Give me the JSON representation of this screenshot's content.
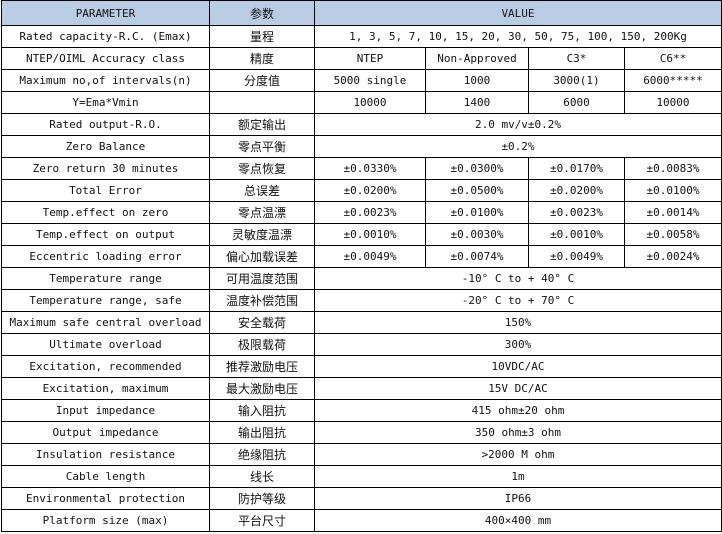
{
  "header": {
    "parameter": "PARAMETER",
    "chinese": "参数",
    "value": "VALUE"
  },
  "header_bg": "#b8cce4",
  "rows": [
    {
      "param": "Rated capacity-R.C. (Emax)",
      "cn": "量程",
      "values": [
        "1, 3, 5, 7, 10, 15, 20, 30, 50, 75, 100, 150, 200Kg"
      ]
    },
    {
      "param": "NTEP/OIML Accuracy class",
      "cn": "精度",
      "values": [
        "NTEP",
        "Non-Approved",
        "C3*",
        "C6**"
      ]
    },
    {
      "param": "Maximum no,of intervals(n)",
      "cn": "分度值",
      "values": [
        "5000  single",
        "1000",
        "3000(1)",
        "6000*****"
      ]
    },
    {
      "param": "Y=Ema*Vmin",
      "cn": "",
      "values": [
        "10000",
        "1400",
        "6000",
        "10000"
      ]
    },
    {
      "param": "Rated output-R.O.",
      "cn": "额定输出",
      "values": [
        "2.0 mv/v±0.2%"
      ]
    },
    {
      "param": "Zero Balance",
      "cn": "零点平衡",
      "values": [
        "±0.2%"
      ]
    },
    {
      "param": "Zero return 30 minutes",
      "cn": "零点恢复",
      "values": [
        "±0.0330%",
        "±0.0300%",
        "±0.0170%",
        "±0.0083%"
      ]
    },
    {
      "param": "Total Error",
      "cn": "总误差",
      "values": [
        "±0.0200%",
        "±0.0500%",
        "±0.0200%",
        "±0.0100%"
      ]
    },
    {
      "param": "Temp.effect on zero",
      "cn": "零点温漂",
      "values": [
        "±0.0023%",
        "±0.0100%",
        "±0.0023%",
        "±0.0014%"
      ]
    },
    {
      "param": "Temp.effect on output",
      "cn": "灵敏度温漂",
      "values": [
        "±0.0010%",
        "±0.0030%",
        "±0.0010%",
        "±0.0058%"
      ]
    },
    {
      "param": "Eccentric loading error",
      "cn": "偏心加载误差",
      "values": [
        "±0.0049%",
        "±0.0074%",
        "±0.0049%",
        "±0.0024%"
      ]
    },
    {
      "param": "Temperature range",
      "cn": "可用温度范围",
      "values": [
        "-10° C to + 40° C"
      ]
    },
    {
      "param": "Temperature range, safe",
      "cn": "温度补偿范围",
      "values": [
        "-20° C to + 70° C"
      ]
    },
    {
      "param": "Maximum safe central overload",
      "cn": "安全载荷",
      "values": [
        "150%"
      ]
    },
    {
      "param": "Ultimate overload",
      "cn": "极限载荷",
      "values": [
        "300%"
      ]
    },
    {
      "param": "Excitation, recommended",
      "cn": "推荐激励电压",
      "values": [
        "10VDC/AC"
      ]
    },
    {
      "param": "Excitation, maximum",
      "cn": "最大激励电压",
      "values": [
        "15V DC/AC"
      ]
    },
    {
      "param": "Input impedance",
      "cn": "输入阻抗",
      "values": [
        "415 ohm±20 ohm"
      ]
    },
    {
      "param": "Output impedance",
      "cn": "输出阻抗",
      "values": [
        "350 ohm±3 ohm"
      ]
    },
    {
      "param": "Insulation resistance",
      "cn": "绝缘阻抗",
      "values": [
        ">2000 M ohm"
      ]
    },
    {
      "param": "Cable length",
      "cn": "线长",
      "values": [
        "1m"
      ]
    },
    {
      "param": "Environmental protection",
      "cn": "防护等级",
      "values": [
        "IP66"
      ]
    },
    {
      "param": "Platform size (max)",
      "cn": "平台尺寸",
      "values": [
        "400×400 mm"
      ]
    }
  ]
}
